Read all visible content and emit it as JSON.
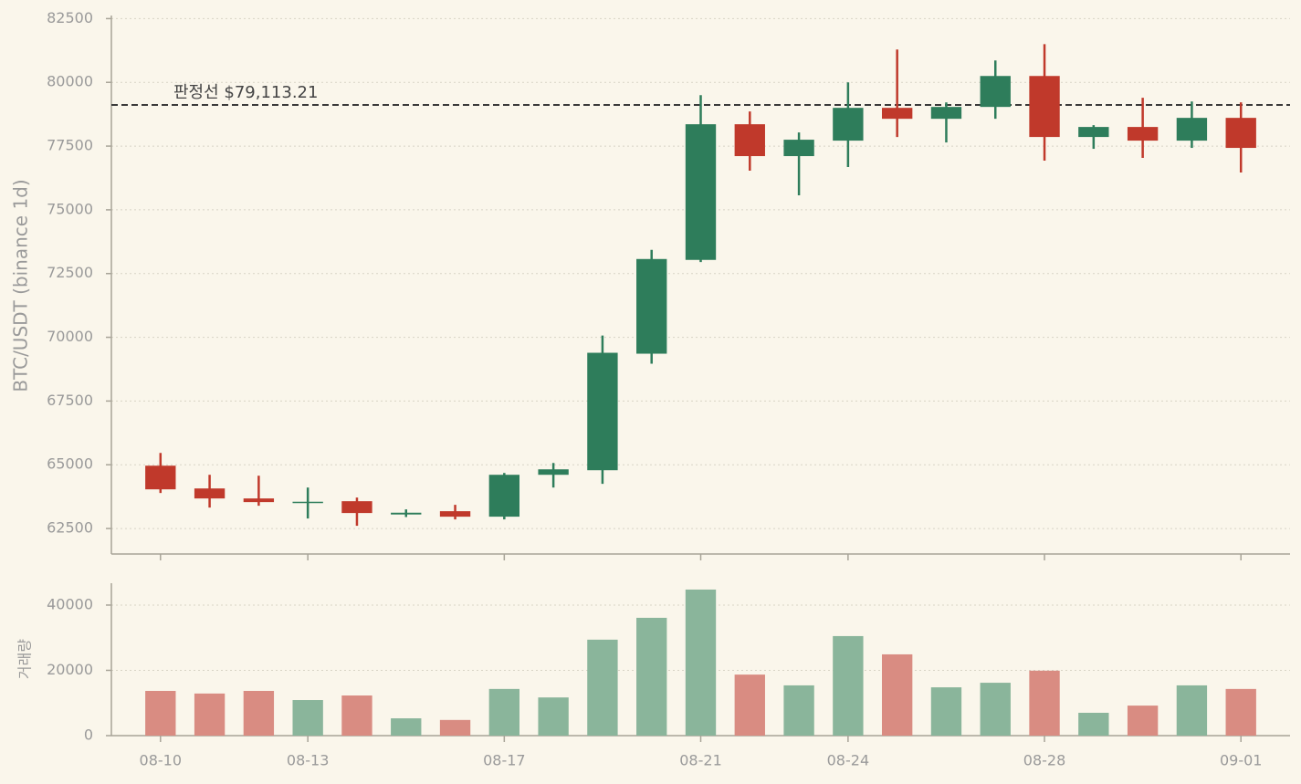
{
  "chart_data": {
    "type": "candlestick",
    "ylabel": "BTC/USDT (binance 1d)",
    "categories": [
      "08-10",
      null,
      null,
      "08-13",
      null,
      null,
      null,
      "08-17",
      null,
      null,
      null,
      "08-21",
      null,
      null,
      "08-24",
      null,
      null,
      null,
      "08-28",
      null,
      null,
      null,
      "09-01"
    ],
    "open": [
      64964,
      64071,
      63679,
      63500,
      63571,
      63050,
      63179,
      62964,
      64607,
      64786,
      69357,
      73036,
      78357,
      77107,
      77714,
      79000,
      78571,
      79036,
      80250,
      77857,
      78250,
      77714,
      78607
    ],
    "high": [
      65464,
      64607,
      64571,
      64107,
      63714,
      63250,
      63429,
      64679,
      65071,
      70071,
      73429,
      79500,
      78857,
      78036,
      80000,
      81286,
      79214,
      80857,
      81500,
      78321,
      79393,
      79250,
      79214
    ],
    "low": [
      63893,
      63321,
      63393,
      62893,
      62607,
      62950,
      62857,
      62857,
      64107,
      64250,
      68964,
      72950,
      76536,
      75571,
      76679,
      77857,
      77643,
      78571,
      76929,
      77393,
      77036,
      77429,
      76464
    ],
    "close": [
      64036,
      63679,
      63536,
      63550,
      63107,
      63120,
      62964,
      64607,
      64821,
      69393,
      73071,
      78357,
      77107,
      77750,
      79000,
      78571,
      79036,
      80250,
      77857,
      78250,
      77714,
      78607,
      77429
    ],
    "up_color": "#2e7d5b",
    "down_color": "#c0392b",
    "ylim": [
      61500,
      82550
    ],
    "yticks": [
      62500,
      65000,
      67500,
      70000,
      72500,
      75000,
      77500,
      80000,
      82500
    ],
    "grid": true,
    "reference_line": {
      "value": 79113.21,
      "label": "판정선 $79,113.21"
    },
    "volume": {
      "ylabel": "거래량",
      "values": [
        13700,
        12900,
        13700,
        10900,
        12300,
        5300,
        4800,
        14300,
        11700,
        29400,
        36100,
        44750,
        18700,
        15400,
        30500,
        24900,
        14800,
        16200,
        19900,
        7000,
        9200,
        15400,
        14300
      ],
      "up_color": "#8ab59b",
      "down_color": "#d98c82",
      "ylim": [
        0,
        46700
      ],
      "yticks": [
        0,
        20000,
        40000
      ]
    }
  }
}
